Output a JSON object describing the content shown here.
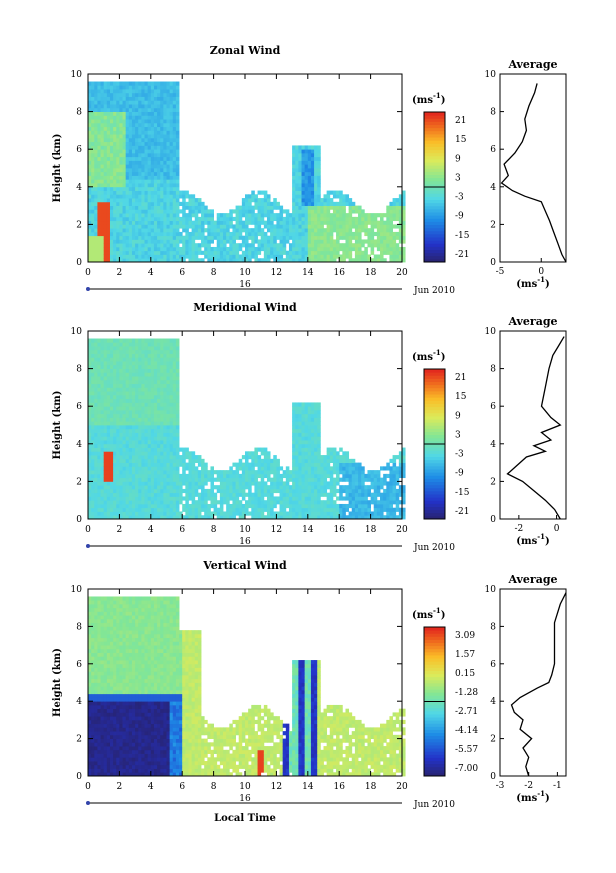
{
  "figure": {
    "x_date_day": "16",
    "x_date_month": "Jun 2010",
    "bottom_xlabel": "Local Time",
    "avg_xunit": "(ms",
    "avg_xunit_sup": "-1",
    "cbar_unit": "(ms",
    "cbar_unit_sup": "-1",
    "cbar_unit_close": ")"
  },
  "chart_data": [
    {
      "type": "heatmap",
      "title": "Zonal Wind",
      "xlabel": "",
      "ylabel": "Height (km)",
      "xlim": [
        0,
        20
      ],
      "ylim": [
        0,
        10
      ],
      "x_ticks": [
        0,
        2,
        4,
        6,
        8,
        10,
        12,
        14,
        16,
        18,
        20
      ],
      "y_ticks": [
        0,
        2,
        4,
        6,
        8,
        10
      ],
      "colorbar": {
        "unit": "(ms-1)",
        "ticks": [
          "21",
          "15",
          "9",
          "3",
          "-3",
          "-9",
          "-15",
          "-21"
        ],
        "range": [
          -24,
          24
        ]
      },
      "average_profile": {
        "title": "Average",
        "xlabel": "(ms-1)",
        "xlim": [
          -5,
          3
        ],
        "x_ticks": [
          "-5",
          "0"
        ],
        "ylim": [
          0,
          10
        ],
        "y_ticks": [
          0,
          2,
          4,
          6,
          8,
          10
        ],
        "points": [
          [
            -0.5,
            9.5
          ],
          [
            -0.8,
            9
          ],
          [
            -1.5,
            8.3
          ],
          [
            -2,
            7.6
          ],
          [
            -1.8,
            7
          ],
          [
            -2.3,
            6.4
          ],
          [
            -3.2,
            5.8
          ],
          [
            -4.5,
            5.2
          ],
          [
            -4,
            4.6
          ],
          [
            -4.8,
            4.2
          ],
          [
            -3.5,
            3.8
          ],
          [
            -2,
            3.5
          ],
          [
            0,
            3.2
          ],
          [
            0.5,
            2.7
          ],
          [
            1,
            2.2
          ],
          [
            1.5,
            1.6
          ],
          [
            2,
            1
          ],
          [
            2.5,
            0.4
          ],
          [
            3,
            0
          ]
        ]
      }
    },
    {
      "type": "heatmap",
      "title": "Meridional Wind",
      "xlabel": "",
      "ylabel": "Height (km)",
      "xlim": [
        0,
        20
      ],
      "ylim": [
        0,
        10
      ],
      "x_ticks": [
        0,
        2,
        4,
        6,
        8,
        10,
        12,
        14,
        16,
        18,
        20
      ],
      "y_ticks": [
        0,
        2,
        4,
        6,
        8,
        10
      ],
      "colorbar": {
        "unit": "(ms-1)",
        "ticks": [
          "21",
          "15",
          "9",
          "3",
          "-3",
          "-9",
          "-15",
          "-21"
        ],
        "range": [
          -24,
          24
        ]
      },
      "average_profile": {
        "title": "Average",
        "xlabel": "(ms-1)",
        "xlim": [
          -3,
          0.5
        ],
        "x_ticks": [
          "-2",
          "0"
        ],
        "ylim": [
          0,
          10
        ],
        "y_ticks": [
          0,
          2,
          4,
          6,
          8,
          10
        ],
        "points": [
          [
            0.4,
            9.7
          ],
          [
            0.1,
            9.2
          ],
          [
            -0.2,
            8.7
          ],
          [
            -0.4,
            8
          ],
          [
            -0.6,
            7
          ],
          [
            -0.8,
            6
          ],
          [
            -0.3,
            5.4
          ],
          [
            0.2,
            5
          ],
          [
            -0.8,
            4.6
          ],
          [
            -0.3,
            4.2
          ],
          [
            -1.2,
            3.9
          ],
          [
            -0.6,
            3.6
          ],
          [
            -1.6,
            3.3
          ],
          [
            -2.6,
            2.4
          ],
          [
            -1.8,
            2
          ],
          [
            -1.2,
            1.5
          ],
          [
            -0.6,
            1
          ],
          [
            -0.1,
            0.5
          ],
          [
            0.2,
            0
          ]
        ]
      }
    },
    {
      "type": "heatmap",
      "title": "Vertical Wind",
      "xlabel": "Local Time",
      "ylabel": "Height (km)",
      "xlim": [
        0,
        20
      ],
      "ylim": [
        0,
        10
      ],
      "x_ticks": [
        0,
        2,
        4,
        6,
        8,
        10,
        12,
        14,
        16,
        18,
        20
      ],
      "y_ticks": [
        0,
        2,
        4,
        6,
        8,
        10
      ],
      "colorbar": {
        "unit": "(ms-1)",
        "ticks": [
          "3.09",
          "1.57",
          "0.15",
          "-1.28",
          "-2.71",
          "-4.14",
          "-5.57",
          "-7.00"
        ],
        "range": [
          -7.7,
          3.8
        ]
      },
      "average_profile": {
        "title": "Average",
        "xlabel": "(ms-1)",
        "xlim": [
          -3,
          -0.7
        ],
        "x_ticks": [
          "-3",
          "-2",
          "-1"
        ],
        "ylim": [
          0,
          10
        ],
        "y_ticks": [
          0,
          2,
          4,
          6,
          8,
          10
        ],
        "points": [
          [
            -0.7,
            9.8
          ],
          [
            -0.9,
            9.2
          ],
          [
            -1.1,
            8.2
          ],
          [
            -1.1,
            7
          ],
          [
            -1.1,
            6
          ],
          [
            -1.2,
            5.4
          ],
          [
            -1.3,
            5
          ],
          [
            -1.7,
            4.7
          ],
          [
            -2.3,
            4.2
          ],
          [
            -2.6,
            3.8
          ],
          [
            -2.5,
            3.4
          ],
          [
            -2.2,
            3
          ],
          [
            -2.3,
            2.5
          ],
          [
            -1.9,
            2
          ],
          [
            -2.2,
            1.5
          ],
          [
            -2,
            1
          ],
          [
            -2.1,
            0.5
          ],
          [
            -2,
            0
          ]
        ]
      }
    }
  ]
}
